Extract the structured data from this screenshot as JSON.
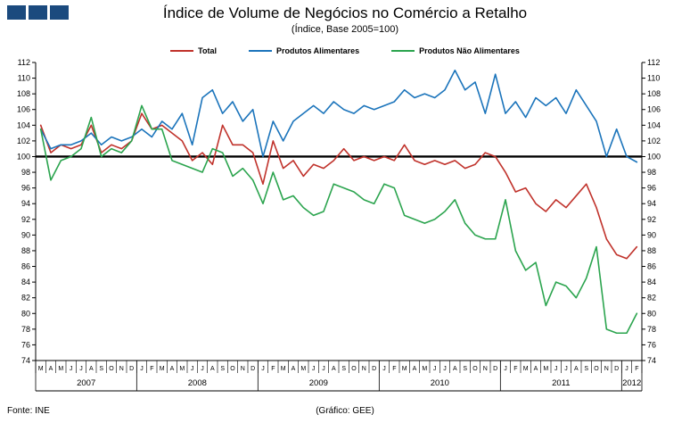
{
  "logo": {
    "color": "#1B4A7E",
    "squares": 3
  },
  "header": {
    "title": "Índice de Volume de Negócios no Comércio a Retalho",
    "subtitle": "(Índice, Base 2005=100)"
  },
  "footer": {
    "source": "Fonte:  INE",
    "credit": "(Gráfico:  GEE)"
  },
  "chart_data": {
    "type": "line",
    "title": "Índice de Volume de Negócios no Comércio a Retalho",
    "subtitle": "(Índice, Base 2005=100)",
    "xlabel": "",
    "ylabel": "",
    "ylim": [
      74,
      112
    ],
    "ytick_step": 2,
    "grid": false,
    "legend_position": "top",
    "ref_line": {
      "y": 100,
      "color": "#000000",
      "width": 2.4
    },
    "month_labels": [
      "M",
      "A",
      "M",
      "J",
      "J",
      "A",
      "S",
      "O",
      "N",
      "D",
      "J",
      "F",
      "M",
      "A",
      "M",
      "J",
      "J",
      "A",
      "S",
      "O",
      "N",
      "D",
      "J",
      "F",
      "M",
      "A",
      "M",
      "J",
      "J",
      "A",
      "S",
      "O",
      "N",
      "D",
      "J",
      "F",
      "M",
      "A",
      "M",
      "J",
      "J",
      "A",
      "S",
      "O",
      "N",
      "D",
      "J",
      "F",
      "M",
      "A",
      "M",
      "J",
      "J",
      "A",
      "S",
      "O",
      "N",
      "D",
      "J",
      "F"
    ],
    "years": [
      {
        "label": "2007",
        "start": 0,
        "count": 10
      },
      {
        "label": "2008",
        "start": 10,
        "count": 12
      },
      {
        "label": "2009",
        "start": 22,
        "count": 12
      },
      {
        "label": "2010",
        "start": 34,
        "count": 12
      },
      {
        "label": "2011",
        "start": 46,
        "count": 12
      },
      {
        "label": "2012",
        "start": 58,
        "count": 2
      }
    ],
    "series": [
      {
        "name": "Total",
        "color": "#C0322B",
        "values": [
          104,
          100.5,
          101.5,
          101,
          101.5,
          104,
          100.5,
          101.5,
          101,
          102,
          105.5,
          103.5,
          104,
          103,
          102,
          99.5,
          100.5,
          99,
          104,
          101.5,
          101.5,
          100.5,
          96.5,
          102,
          98.5,
          99.5,
          97.5,
          99,
          98.5,
          99.5,
          101,
          99.5,
          100,
          99.5,
          100,
          99.5,
          101.5,
          99.5,
          99,
          99.5,
          99,
          99.5,
          98.5,
          99,
          100.5,
          100,
          98,
          95.5,
          96,
          94,
          93,
          94.5,
          93.5,
          95,
          96.5,
          93.5,
          89.5,
          87.5,
          87,
          88.5
        ]
      },
      {
        "name": "Produtos Alimentares",
        "color": "#1B74BB",
        "values": [
          103.5,
          101,
          101.5,
          101.5,
          102,
          103,
          101.5,
          102.5,
          102,
          102.5,
          103.5,
          102.5,
          104.5,
          103.5,
          105.5,
          101.5,
          107.5,
          108.5,
          105.5,
          107,
          104.5,
          106,
          100,
          104.5,
          102,
          104.5,
          105.5,
          106.5,
          105.5,
          107,
          106,
          105.5,
          106.5,
          106,
          106.5,
          107,
          108.5,
          107.5,
          108,
          107.5,
          108.5,
          111,
          108.5,
          109.5,
          105.5,
          110.5,
          105.5,
          107,
          105,
          107.5,
          106.5,
          107.5,
          105.5,
          108.5,
          106.5,
          104.5,
          100,
          103.5,
          100,
          99.3
        ]
      },
      {
        "name": "Produtos Não Alimentares",
        "color": "#2BA44E",
        "values": [
          103.5,
          97,
          99.5,
          100,
          101,
          105,
          100,
          101,
          100.5,
          102,
          106.5,
          103.5,
          103.5,
          99.5,
          99,
          98.5,
          98,
          101,
          100.5,
          97.5,
          98.5,
          97,
          94,
          98,
          94.5,
          95,
          93.5,
          92.5,
          93,
          96.5,
          96,
          95.5,
          94.5,
          94,
          96.5,
          96,
          92.5,
          92,
          91.5,
          92,
          93,
          94.5,
          91.5,
          90,
          89.5,
          89.5,
          94.5,
          88,
          85.5,
          86.5,
          81,
          84,
          83.5,
          82,
          84.5,
          88.5,
          78,
          77.5,
          77.5,
          80
        ]
      }
    ]
  }
}
